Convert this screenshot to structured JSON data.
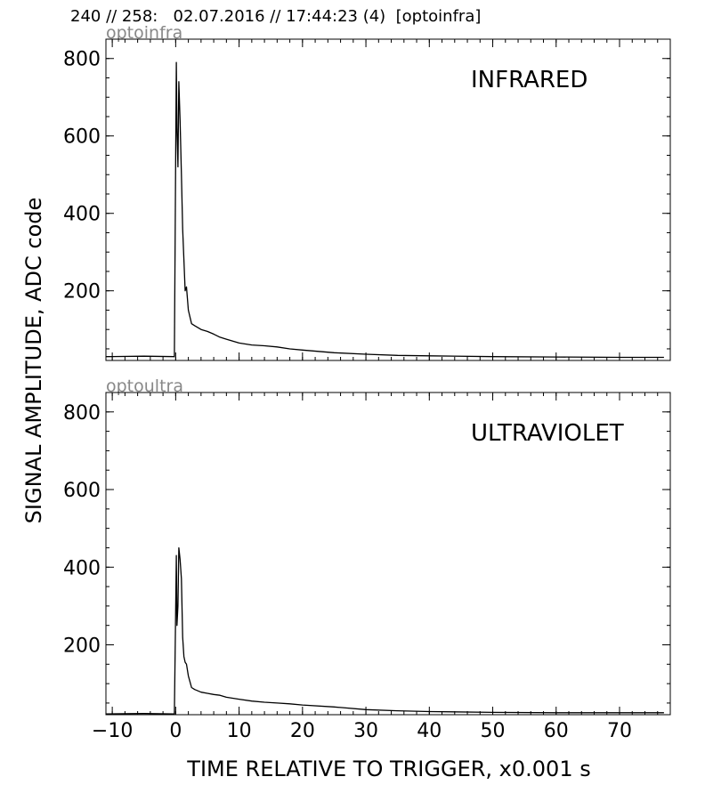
{
  "header": "240 // 258:   02.07.2016 // 17:44:23 (4)  [optoinfra]",
  "chart_data": {
    "type": "line",
    "xlabel": "TIME RELATIVE TO TRIGGER,   x0.001 s",
    "ylabel": "SIGNAL AMPLITUDE,  ADC code",
    "xlim": [
      -11,
      78
    ],
    "xticks": [
      -10,
      0,
      10,
      20,
      30,
      40,
      50,
      60,
      70
    ],
    "xtick_labels": [
      "−10",
      "0",
      "10",
      "20",
      "30",
      "40",
      "50",
      "60",
      "70"
    ],
    "yticks": [
      200,
      400,
      600,
      800
    ],
    "yminor_step": 50,
    "xminor_step": 2,
    "grid": false,
    "line_color": "#000000",
    "panels": [
      {
        "title": "optoinfra",
        "label": "INFRARED",
        "ylim": [
          20,
          850
        ],
        "x": [
          -11,
          -5,
          -0.2,
          0,
          0.1,
          0.2,
          0.35,
          0.5,
          0.7,
          0.9,
          1.1,
          1.3,
          1.5,
          1.7,
          2,
          2.5,
          3,
          4,
          5,
          6,
          7,
          8,
          10,
          12,
          14,
          16,
          18,
          20,
          25,
          30,
          35,
          40,
          50,
          60,
          70,
          77
        ],
        "y": [
          30,
          31,
          30,
          560,
          790,
          620,
          520,
          740,
          640,
          500,
          360,
          280,
          200,
          210,
          150,
          115,
          110,
          100,
          95,
          88,
          80,
          75,
          65,
          60,
          58,
          55,
          50,
          47,
          40,
          36,
          33,
          32,
          30,
          29,
          28,
          28
        ]
      },
      {
        "title": "optoultra",
        "label": "ULTRAVIOLET",
        "ylim": [
          20,
          850
        ],
        "x": [
          -11,
          -5,
          -0.2,
          0,
          0.1,
          0.2,
          0.35,
          0.5,
          0.7,
          0.9,
          1.1,
          1.3,
          1.5,
          1.7,
          2,
          2.5,
          3,
          4,
          5,
          6,
          7,
          8,
          10,
          12,
          14,
          16,
          18,
          20,
          25,
          30,
          35,
          40,
          50,
          60,
          70,
          77
        ],
        "y": [
          22,
          23,
          22,
          300,
          430,
          250,
          300,
          450,
          420,
          370,
          220,
          170,
          155,
          150,
          120,
          90,
          85,
          78,
          75,
          72,
          70,
          65,
          60,
          55,
          52,
          50,
          48,
          45,
          40,
          33,
          30,
          28,
          26,
          25,
          25,
          25
        ]
      }
    ]
  }
}
